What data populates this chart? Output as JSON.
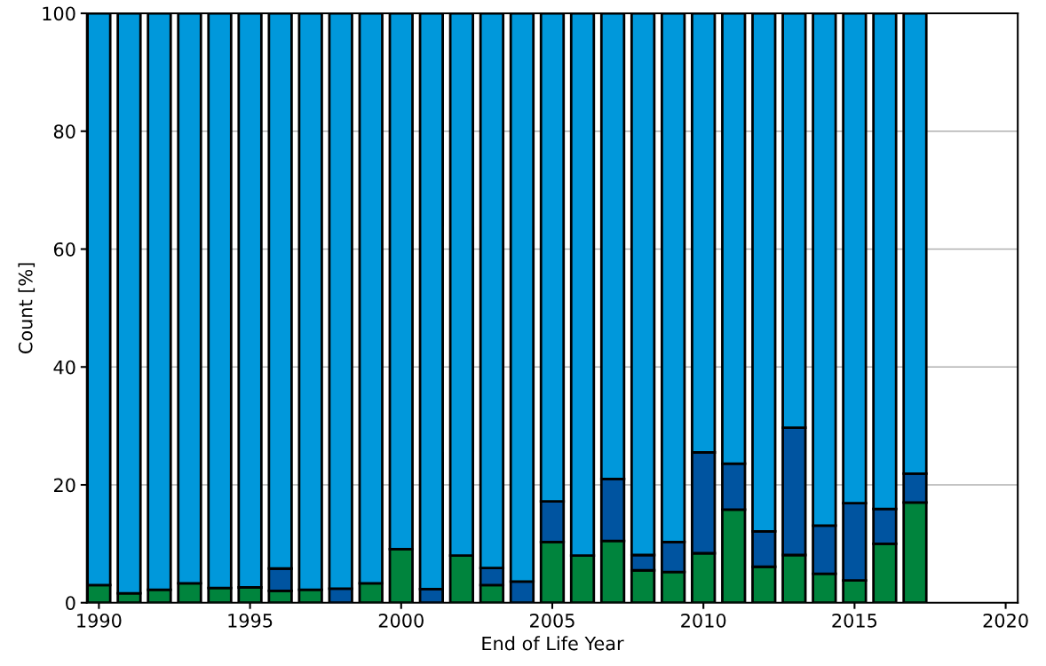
{
  "chart_data": {
    "type": "bar",
    "stacked": true,
    "xlabel": "End of Life Year",
    "ylabel": "Count [%]",
    "x": [
      1990,
      1991,
      1992,
      1993,
      1994,
      1995,
      1996,
      1997,
      1998,
      1999,
      2000,
      2001,
      2002,
      2003,
      2004,
      2005,
      2006,
      2007,
      2008,
      2009,
      2010,
      2011,
      2012,
      2013,
      2014,
      2015,
      2016,
      2017
    ],
    "series": [
      {
        "color": "#00843d",
        "values": [
          3.0,
          1.6,
          2.2,
          3.3,
          2.5,
          2.6,
          2.0,
          2.2,
          null,
          3.3,
          9.1,
          null,
          8.0,
          3.0,
          null,
          10.3,
          8.0,
          10.5,
          5.5,
          5.2,
          8.4,
          15.8,
          6.1,
          8.1,
          4.9,
          3.8,
          10.0,
          17.0
        ]
      },
      {
        "color": "#0054a0",
        "values": [
          null,
          null,
          null,
          null,
          null,
          null,
          3.8,
          null,
          2.4,
          null,
          null,
          2.3,
          null,
          2.9,
          3.6,
          6.9,
          null,
          10.5,
          2.6,
          5.1,
          17.1,
          7.8,
          6.0,
          21.6,
          8.2,
          13.1,
          5.9,
          4.9
        ]
      },
      {
        "color": "#0098db",
        "values": [
          97.0,
          98.4,
          97.8,
          96.7,
          97.5,
          97.4,
          94.2,
          97.8,
          97.6,
          96.7,
          90.9,
          97.7,
          92.0,
          94.1,
          96.4,
          82.8,
          92.0,
          79.0,
          91.9,
          89.7,
          74.5,
          76.4,
          87.9,
          70.3,
          86.9,
          83.1,
          84.1,
          78.1
        ]
      }
    ],
    "xlim": [
      1989.6,
      2020.4
    ],
    "xticks": [
      1990,
      1995,
      2000,
      2005,
      2010,
      2015,
      2020
    ],
    "ylim": [
      0,
      100
    ],
    "yticks": [
      0,
      20,
      40,
      60,
      80,
      100
    ],
    "grid": "y"
  }
}
